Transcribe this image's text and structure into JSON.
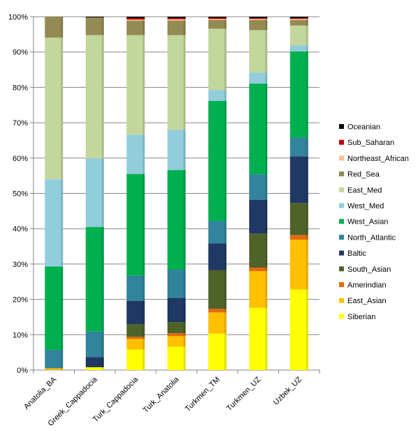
{
  "chart_data": {
    "type": "bar",
    "stacked": true,
    "title": "",
    "xlabel": "",
    "ylabel": "",
    "ylim": [
      0,
      100
    ],
    "y_ticks": [
      "0%",
      "10%",
      "20%",
      "30%",
      "40%",
      "50%",
      "60%",
      "70%",
      "80%",
      "90%",
      "100%"
    ],
    "grid": true,
    "legend_position": "right",
    "categories": [
      "Anatolia_BA",
      "Greek_Cappadocia",
      "Turk_Cappadocia",
      "Turk_Anatolia",
      "Turkmen_TM",
      "Turkmen_UZ",
      "Uzbek_UZ"
    ],
    "series": [
      {
        "name": "Siberian",
        "color": "#ffff00",
        "values": [
          0,
          0.8,
          5.8,
          6.6,
          10.3,
          17.6,
          22.8
        ]
      },
      {
        "name": "East_Asian",
        "color": "#ffc000",
        "values": [
          0.5,
          0,
          3.0,
          3.0,
          6.0,
          10.4,
          14.1
        ]
      },
      {
        "name": "Amerindian",
        "color": "#e46c0a",
        "values": [
          0,
          0,
          0.6,
          0.8,
          1.0,
          1.0,
          1.3
        ]
      },
      {
        "name": "South_Asian",
        "color": "#4f6228",
        "values": [
          0,
          0,
          3.6,
          3.2,
          11.0,
          9.6,
          9.1
        ]
      },
      {
        "name": "Baltic",
        "color": "#1f3864",
        "values": [
          0,
          2.9,
          6.6,
          6.8,
          7.5,
          9.6,
          13.2
        ]
      },
      {
        "name": "North_Atlantic",
        "color": "#31849b",
        "values": [
          5.2,
          7.2,
          7.1,
          8.0,
          6.4,
          7.2,
          5.3
        ]
      },
      {
        "name": "West_Asian",
        "color": "#00b050",
        "values": [
          23.6,
          29.6,
          28.8,
          28.2,
          34.0,
          25.7,
          24.4
        ]
      },
      {
        "name": "West_Med",
        "color": "#92cddc",
        "values": [
          24.7,
          19.4,
          11.1,
          11.4,
          3.0,
          3.1,
          1.7
        ]
      },
      {
        "name": "East_Med",
        "color": "#c3d69b",
        "values": [
          40.1,
          34.9,
          28.2,
          26.8,
          17.4,
          12.0,
          5.6
        ]
      },
      {
        "name": "Red_Sea",
        "color": "#948a54",
        "values": [
          5.9,
          5.0,
          4.1,
          4.1,
          2.5,
          2.9,
          1.6
        ]
      },
      {
        "name": "Northeast_African",
        "color": "#fabf8f",
        "values": [
          0,
          0,
          0.3,
          0.4,
          0.3,
          0.3,
          0.3
        ]
      },
      {
        "name": "Sub_Saharan",
        "color": "#c00000",
        "values": [
          0,
          0,
          0.4,
          0.3,
          0.3,
          0.2,
          0.2
        ]
      },
      {
        "name": "Oceanian",
        "color": "#0d0d0d",
        "values": [
          0,
          0.2,
          0.4,
          0.4,
          0.3,
          0.4,
          0.4
        ]
      }
    ]
  }
}
